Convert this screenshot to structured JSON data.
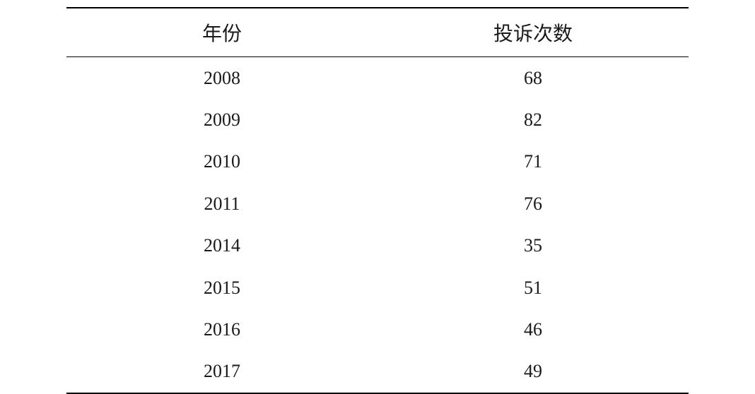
{
  "table": {
    "type": "table",
    "columns": [
      "年份",
      "投诉次数"
    ],
    "rows": [
      [
        "2008",
        "68"
      ],
      [
        "2009",
        "82"
      ],
      [
        "2010",
        "71"
      ],
      [
        "2011",
        "76"
      ],
      [
        "2014",
        "35"
      ],
      [
        "2015",
        "51"
      ],
      [
        "2016",
        "46"
      ],
      [
        "2017",
        "49"
      ]
    ],
    "header_fontsize": 28,
    "body_fontsize": 26,
    "text_color": "#1a1a1a",
    "background_color": "#ffffff",
    "border_color": "#000000",
    "border_top_width": 2,
    "border_header_width": 1.5,
    "border_bottom_width": 2,
    "column_widths": [
      "50%",
      "50%"
    ],
    "text_align": "center"
  }
}
